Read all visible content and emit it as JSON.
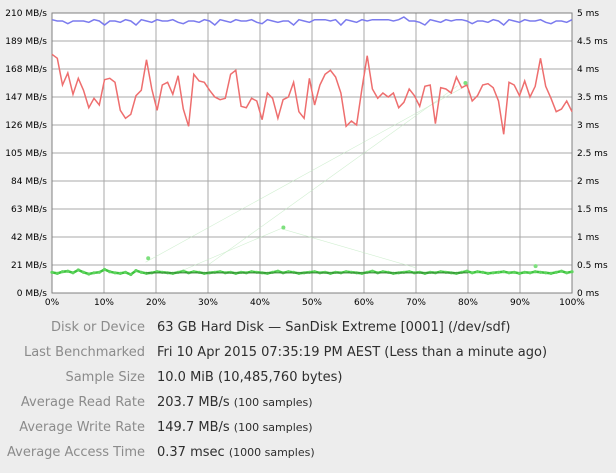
{
  "chart_data": {
    "type": "line",
    "x_ticks": [
      "0%",
      "10%",
      "20%",
      "30%",
      "40%",
      "50%",
      "60%",
      "70%",
      "80%",
      "90%",
      "100%"
    ],
    "y_left_ticks": [
      "0 MB/s",
      "21 MB/s",
      "42 MB/s",
      "63 MB/s",
      "84 MB/s",
      "105 MB/s",
      "126 MB/s",
      "147 MB/s",
      "168 MB/s",
      "189 MB/s",
      "210 MB/s"
    ],
    "y_right_ticks": [
      "0 ms",
      "0.5 ms",
      "1 ms",
      "1.5 ms",
      "2 ms",
      "2.5 ms",
      "3 ms",
      "3.5 ms",
      "4 ms",
      "4.5 ms",
      "5 ms"
    ],
    "xlim": [
      0,
      100
    ],
    "ylim_left": [
      0,
      210
    ],
    "ylim_right": [
      0,
      5
    ],
    "grid": true,
    "series": [
      {
        "color": "#7b7bee",
        "axis": "left",
        "values": [
          205,
          204,
          204,
          202,
          204,
          204,
          204,
          203,
          205,
          204,
          201,
          204,
          204,
          203,
          205,
          204,
          201,
          205,
          204,
          203,
          205,
          204,
          204,
          205,
          203,
          202,
          204,
          204,
          203,
          205,
          204,
          201,
          205,
          204,
          203,
          205,
          204,
          204,
          205,
          203,
          202,
          205,
          204,
          203,
          204,
          204,
          201,
          205,
          204,
          203,
          205,
          205,
          205,
          204,
          205,
          201,
          205,
          204,
          203,
          205,
          204,
          205,
          205,
          205,
          205,
          204,
          205,
          207,
          204,
          204,
          203,
          201,
          205,
          204,
          203,
          205,
          204,
          205,
          205,
          204,
          202,
          204,
          204,
          203,
          205,
          204,
          201,
          205,
          204,
          203,
          205,
          204,
          204,
          205,
          203,
          202,
          204,
          204,
          203,
          205
        ]
      },
      {
        "color": "#ee6e6e",
        "axis": "left",
        "values": [
          179,
          176,
          156,
          165,
          149,
          161,
          152,
          139,
          146,
          141,
          160,
          161,
          158,
          137,
          131,
          134,
          148,
          152,
          175,
          153,
          137,
          156,
          158,
          149,
          163,
          138,
          125,
          164,
          159,
          158,
          152,
          147,
          145,
          146,
          164,
          167,
          140,
          139,
          146,
          144,
          130,
          150,
          146,
          131,
          145,
          147,
          158,
          136,
          131,
          161,
          141,
          156,
          164,
          167,
          162,
          150,
          125,
          129,
          126,
          153,
          178,
          153,
          146,
          150,
          147,
          150,
          139,
          143,
          153,
          148,
          140,
          155,
          156,
          127,
          154,
          153,
          150,
          162,
          154,
          156,
          144,
          148,
          156,
          157,
          154,
          144,
          119,
          158,
          156,
          148,
          159,
          147,
          155,
          176,
          155,
          146,
          136,
          138,
          144,
          136
        ]
      },
      {
        "color": "#3ec43e",
        "axis": "right",
        "values": [
          0.37,
          0.35,
          0.38,
          0.39,
          0.36,
          0.41,
          0.37,
          0.34,
          0.36,
          0.37,
          0.42,
          0.38,
          0.36,
          0.35,
          0.37,
          0.33,
          0.4,
          0.37,
          0.35,
          0.36,
          0.38,
          0.37,
          0.36,
          0.35,
          0.37,
          0.39,
          0.36,
          0.38,
          0.37,
          0.35,
          0.36,
          0.37,
          0.38,
          0.36,
          0.37,
          0.35,
          0.37,
          0.36,
          0.38,
          0.37,
          0.36,
          0.35,
          0.37,
          0.39,
          0.36,
          0.38,
          0.37,
          0.35,
          0.36,
          0.37,
          0.38,
          0.36,
          0.37,
          0.35,
          0.37,
          0.36,
          0.38,
          0.37,
          0.36,
          0.35,
          0.37,
          0.39,
          0.36,
          0.38,
          0.37,
          0.35,
          0.36,
          0.37,
          0.38,
          0.36,
          0.37,
          0.35,
          0.37,
          0.36,
          0.38,
          0.37,
          0.36,
          0.35,
          0.37,
          0.39,
          0.36,
          0.38,
          0.37,
          0.35,
          0.36,
          0.37,
          0.38,
          0.36,
          0.37,
          0.35,
          0.37,
          0.36,
          0.38,
          0.37,
          0.36,
          0.35,
          0.37,
          0.39,
          0.36,
          0.38
        ]
      }
    ],
    "outlier_points": [
      {
        "x": 18.5,
        "y": 0.62
      },
      {
        "x": 44.5,
        "y": 1.17
      },
      {
        "x": 79.5,
        "y": 3.75
      },
      {
        "x": 93,
        "y": 0.48
      }
    ]
  },
  "details": {
    "device_label": "Disk or Device",
    "device_value": "63 GB Hard Disk — SanDisk Extreme [0001] (/dev/sdf)",
    "last_label": "Last Benchmarked",
    "last_value": "Fri 10 Apr 2015 07:35:19 PM AEST (Less than a minute ago)",
    "sample_label": "Sample Size",
    "sample_value": "10.0 MiB (10,485,760 bytes)",
    "read_label": "Average Read Rate",
    "read_value": "203.7 MB/s",
    "read_note": "(100 samples)",
    "write_label": "Average Write Rate",
    "write_value": "149.7 MB/s",
    "write_note": "(100 samples)",
    "access_label": "Average Access Time",
    "access_value": "0.37 msec",
    "access_note": "(1000 samples)"
  }
}
